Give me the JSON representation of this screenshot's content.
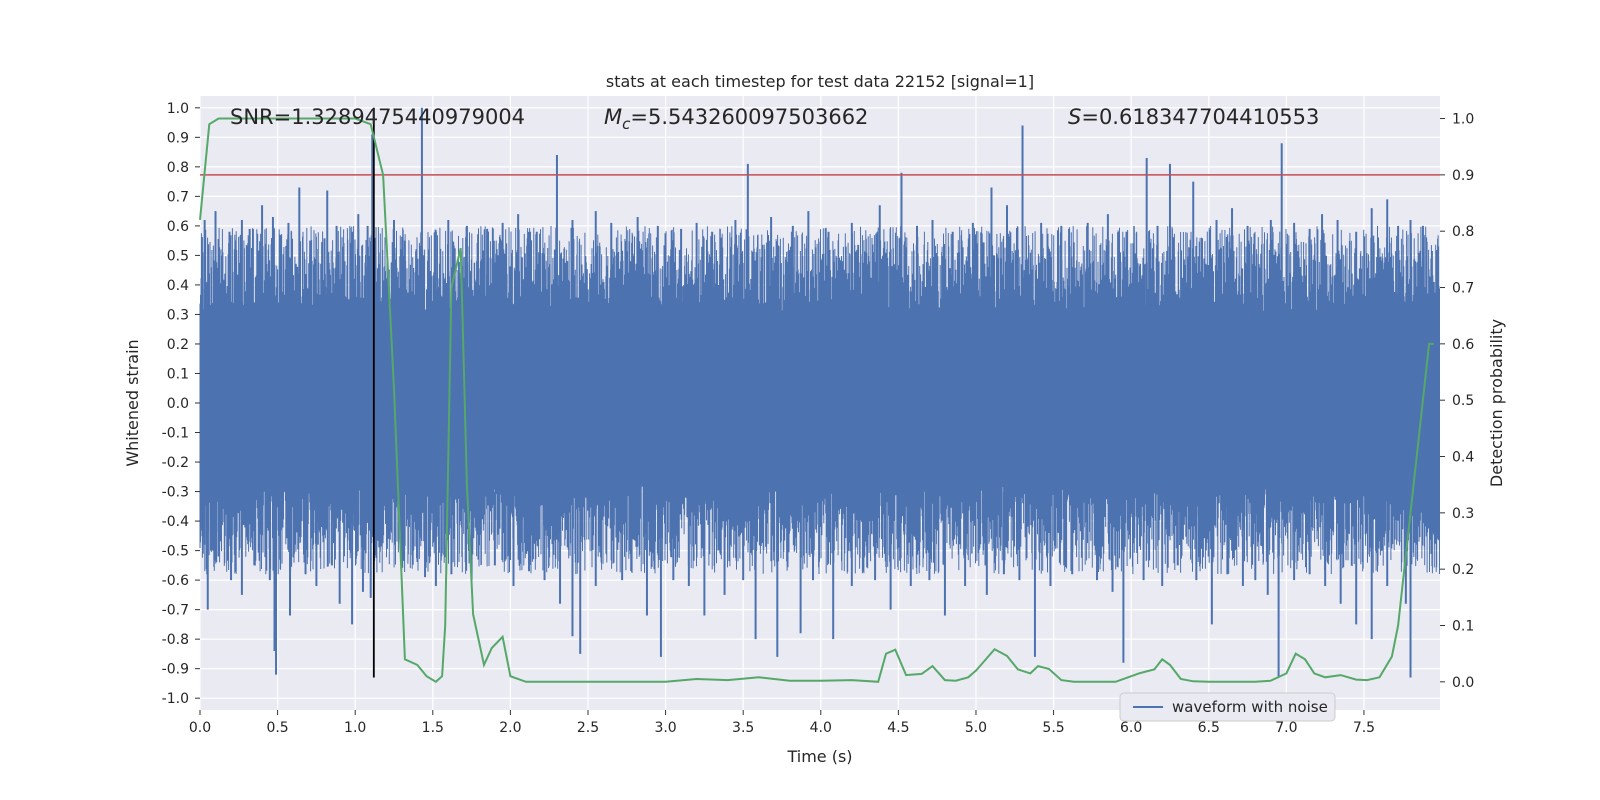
{
  "chart_data": {
    "type": "line",
    "title": "stats at each timestep for test data 22152 [signal=1]",
    "xlabel": "Time (s)",
    "ylabel": "Whitened strain",
    "y2label": "Detection probability",
    "xlim": [
      0.0,
      7.99
    ],
    "ylim": [
      -1.04,
      1.04
    ],
    "y2lim": [
      -0.05,
      1.04
    ],
    "x_ticks": [
      "0.0",
      "0.5",
      "1.0",
      "1.5",
      "2.0",
      "2.5",
      "3.0",
      "3.5",
      "4.0",
      "4.5",
      "5.0",
      "5.5",
      "6.0",
      "6.5",
      "7.0",
      "7.5"
    ],
    "y_ticks": [
      "1.0",
      "0.9",
      "0.8",
      "0.7",
      "0.6",
      "0.5",
      "0.4",
      "0.3",
      "0.2",
      "0.1",
      "0.0",
      "-0.1",
      "-0.2",
      "-0.3",
      "-0.4",
      "-0.5",
      "-0.6",
      "-0.7",
      "-0.8",
      "-0.9",
      "-1.0"
    ],
    "y2_ticks": [
      "1.0",
      "0.9",
      "0.8",
      "0.7",
      "0.6",
      "0.5",
      "0.4",
      "0.3",
      "0.2",
      "0.1",
      "0.0"
    ],
    "grid": true,
    "legend": {
      "position": "lower-center",
      "entries": [
        "waveform with noise"
      ]
    },
    "annotations": {
      "snr": "SNR=1.3289475440979004",
      "mc_symbol": "M",
      "mc_sub": "c",
      "mc_value": "=5.543260097503662",
      "s_symbol": "S",
      "s_value": "=0.618347704410553"
    },
    "threshold_y2": 0.9,
    "merger_time": 1.12,
    "series": [
      {
        "name": "waveform with noise",
        "color": "#4c72b0",
        "axis": "left",
        "spikes_pos": [
          [
            0.03,
            0.62
          ],
          [
            0.1,
            0.65
          ],
          [
            0.19,
            0.58
          ],
          [
            0.27,
            0.62
          ],
          [
            0.32,
            0.59
          ],
          [
            0.4,
            0.67
          ],
          [
            0.47,
            0.63
          ],
          [
            0.57,
            0.61
          ],
          [
            0.64,
            0.73
          ],
          [
            0.71,
            0.55
          ],
          [
            0.82,
            0.72
          ],
          [
            0.88,
            0.6
          ],
          [
            0.98,
            0.58
          ],
          [
            1.02,
            0.64
          ],
          [
            1.08,
            0.6
          ],
          [
            1.11,
            0.91
          ],
          [
            1.25,
            0.62
          ],
          [
            1.32,
            0.55
          ],
          [
            1.43,
            1.0
          ],
          [
            1.52,
            0.58
          ],
          [
            1.6,
            0.62
          ],
          [
            1.72,
            0.6
          ],
          [
            1.85,
            0.59
          ],
          [
            1.95,
            0.61
          ],
          [
            2.05,
            0.64
          ],
          [
            2.17,
            0.58
          ],
          [
            2.3,
            0.84
          ],
          [
            2.4,
            0.62
          ],
          [
            2.55,
            0.65
          ],
          [
            2.65,
            0.61
          ],
          [
            2.82,
            0.63
          ],
          [
            2.95,
            0.6
          ],
          [
            3.1,
            0.59
          ],
          [
            3.2,
            0.61
          ],
          [
            3.3,
            0.58
          ],
          [
            3.45,
            0.62
          ],
          [
            3.53,
            0.81
          ],
          [
            3.68,
            0.63
          ],
          [
            3.82,
            0.6
          ],
          [
            3.92,
            0.65
          ],
          [
            4.05,
            0.58
          ],
          [
            4.2,
            0.61
          ],
          [
            4.38,
            0.67
          ],
          [
            4.52,
            0.78
          ],
          [
            4.62,
            0.6
          ],
          [
            4.72,
            0.62
          ],
          [
            4.85,
            0.58
          ],
          [
            4.98,
            0.61
          ],
          [
            5.1,
            0.73
          ],
          [
            5.2,
            0.67
          ],
          [
            5.3,
            0.94
          ],
          [
            5.42,
            0.61
          ],
          [
            5.55,
            0.6
          ],
          [
            5.6,
            0.59
          ],
          [
            5.72,
            0.61
          ],
          [
            5.85,
            0.64
          ],
          [
            5.97,
            0.58
          ],
          [
            6.1,
            0.83
          ],
          [
            6.17,
            0.6
          ],
          [
            6.25,
            0.81
          ],
          [
            6.4,
            0.75
          ],
          [
            6.55,
            0.62
          ],
          [
            6.65,
            0.66
          ],
          [
            6.75,
            0.6
          ],
          [
            6.9,
            0.62
          ],
          [
            6.97,
            0.88
          ],
          [
            7.05,
            0.61
          ],
          [
            7.15,
            0.59
          ],
          [
            7.23,
            0.64
          ],
          [
            7.33,
            0.62
          ],
          [
            7.45,
            0.58
          ],
          [
            7.55,
            0.66
          ],
          [
            7.65,
            0.69
          ],
          [
            7.72,
            0.6
          ],
          [
            7.8,
            0.62
          ],
          [
            7.88,
            0.6
          ]
        ],
        "spikes_neg": [
          [
            0.03,
            -0.48
          ],
          [
            0.05,
            -0.7
          ],
          [
            0.12,
            -0.52
          ],
          [
            0.2,
            -0.6
          ],
          [
            0.27,
            -0.65
          ],
          [
            0.35,
            -0.55
          ],
          [
            0.45,
            -0.6
          ],
          [
            0.48,
            -0.84
          ],
          [
            0.49,
            -0.92
          ],
          [
            0.58,
            -0.72
          ],
          [
            0.68,
            -0.58
          ],
          [
            0.75,
            -0.62
          ],
          [
            0.85,
            -0.55
          ],
          [
            0.9,
            -0.68
          ],
          [
            0.98,
            -0.75
          ],
          [
            1.05,
            -0.64
          ],
          [
            1.1,
            -0.66
          ],
          [
            1.3,
            -0.56
          ],
          [
            1.45,
            -0.59
          ],
          [
            1.52,
            -0.62
          ],
          [
            1.62,
            -0.58
          ],
          [
            1.75,
            -0.6
          ],
          [
            1.9,
            -0.55
          ],
          [
            2.02,
            -0.62
          ],
          [
            2.12,
            -0.57
          ],
          [
            2.22,
            -0.6
          ],
          [
            2.32,
            -0.68
          ],
          [
            2.4,
            -0.79
          ],
          [
            2.45,
            -0.85
          ],
          [
            2.55,
            -0.62
          ],
          [
            2.72,
            -0.6
          ],
          [
            2.88,
            -0.72
          ],
          [
            2.97,
            -0.86
          ],
          [
            3.05,
            -0.6
          ],
          [
            3.15,
            -0.62
          ],
          [
            3.25,
            -0.72
          ],
          [
            3.38,
            -0.65
          ],
          [
            3.5,
            -0.6
          ],
          [
            3.58,
            -0.8
          ],
          [
            3.72,
            -0.86
          ],
          [
            3.87,
            -0.78
          ],
          [
            3.95,
            -0.6
          ],
          [
            4.08,
            -0.8
          ],
          [
            4.2,
            -0.62
          ],
          [
            4.35,
            -0.6
          ],
          [
            4.45,
            -0.7
          ],
          [
            4.58,
            -0.62
          ],
          [
            4.7,
            -0.6
          ],
          [
            4.8,
            -0.72
          ],
          [
            4.93,
            -0.62
          ],
          [
            5.07,
            -0.65
          ],
          [
            5.18,
            -0.58
          ],
          [
            5.28,
            -0.6
          ],
          [
            5.38,
            -0.86
          ],
          [
            5.48,
            -0.62
          ],
          [
            5.62,
            -0.58
          ],
          [
            5.78,
            -0.6
          ],
          [
            5.88,
            -0.64
          ],
          [
            5.95,
            -0.88
          ],
          [
            6.08,
            -0.6
          ],
          [
            6.2,
            -0.62
          ],
          [
            6.3,
            -0.55
          ],
          [
            6.42,
            -0.6
          ],
          [
            6.52,
            -0.75
          ],
          [
            6.62,
            -0.58
          ],
          [
            6.72,
            -0.62
          ],
          [
            6.8,
            -0.6
          ],
          [
            6.88,
            -0.65
          ],
          [
            6.95,
            -0.93
          ],
          [
            7.05,
            -0.6
          ],
          [
            7.15,
            -0.58
          ],
          [
            7.25,
            -0.62
          ],
          [
            7.35,
            -0.68
          ],
          [
            7.45,
            -0.75
          ],
          [
            7.55,
            -0.8
          ],
          [
            7.65,
            -0.62
          ],
          [
            7.77,
            -0.68
          ],
          [
            7.8,
            -0.93
          ],
          [
            7.9,
            -0.4
          ]
        ]
      },
      {
        "name": "",
        "color": "#55a868",
        "axis": "right",
        "x": [
          0.0,
          0.06,
          0.12,
          0.5,
          0.9,
          1.0,
          1.1,
          1.18,
          1.25,
          1.32,
          1.4,
          1.46,
          1.52,
          1.56,
          1.58,
          1.62,
          1.68,
          1.72,
          1.76,
          1.83,
          1.88,
          1.95,
          2.0,
          2.1,
          2.5,
          3.0,
          3.2,
          3.4,
          3.6,
          3.8,
          4.0,
          4.2,
          4.37,
          4.42,
          4.48,
          4.55,
          4.65,
          4.72,
          4.8,
          4.87,
          4.95,
          5.0,
          5.12,
          5.2,
          5.27,
          5.35,
          5.4,
          5.47,
          5.55,
          5.63,
          5.9,
          6.05,
          6.15,
          6.2,
          6.25,
          6.32,
          6.4,
          6.5,
          6.8,
          6.9,
          7.0,
          7.06,
          7.12,
          7.18,
          7.25,
          7.35,
          7.45,
          7.52,
          7.6,
          7.68,
          7.72,
          7.76,
          7.82,
          7.88,
          7.92,
          7.95
        ],
        "y": [
          0.82,
          0.99,
          1.0,
          1.0,
          1.0,
          1.0,
          0.99,
          0.9,
          0.52,
          0.04,
          0.03,
          0.01,
          0.0,
          0.01,
          0.1,
          0.7,
          0.77,
          0.35,
          0.12,
          0.03,
          0.06,
          0.08,
          0.01,
          0.0,
          0.0,
          0.0,
          0.005,
          0.003,
          0.008,
          0.002,
          0.002,
          0.003,
          0.0,
          0.05,
          0.057,
          0.012,
          0.014,
          0.028,
          0.003,
          0.002,
          0.008,
          0.02,
          0.058,
          0.046,
          0.022,
          0.015,
          0.028,
          0.023,
          0.003,
          0.0,
          0.0,
          0.015,
          0.022,
          0.04,
          0.03,
          0.005,
          0.001,
          0.0,
          0.0,
          0.002,
          0.015,
          0.05,
          0.04,
          0.015,
          0.008,
          0.012,
          0.004,
          0.003,
          0.008,
          0.045,
          0.1,
          0.2,
          0.35,
          0.5,
          0.6,
          0.6
        ]
      }
    ]
  }
}
